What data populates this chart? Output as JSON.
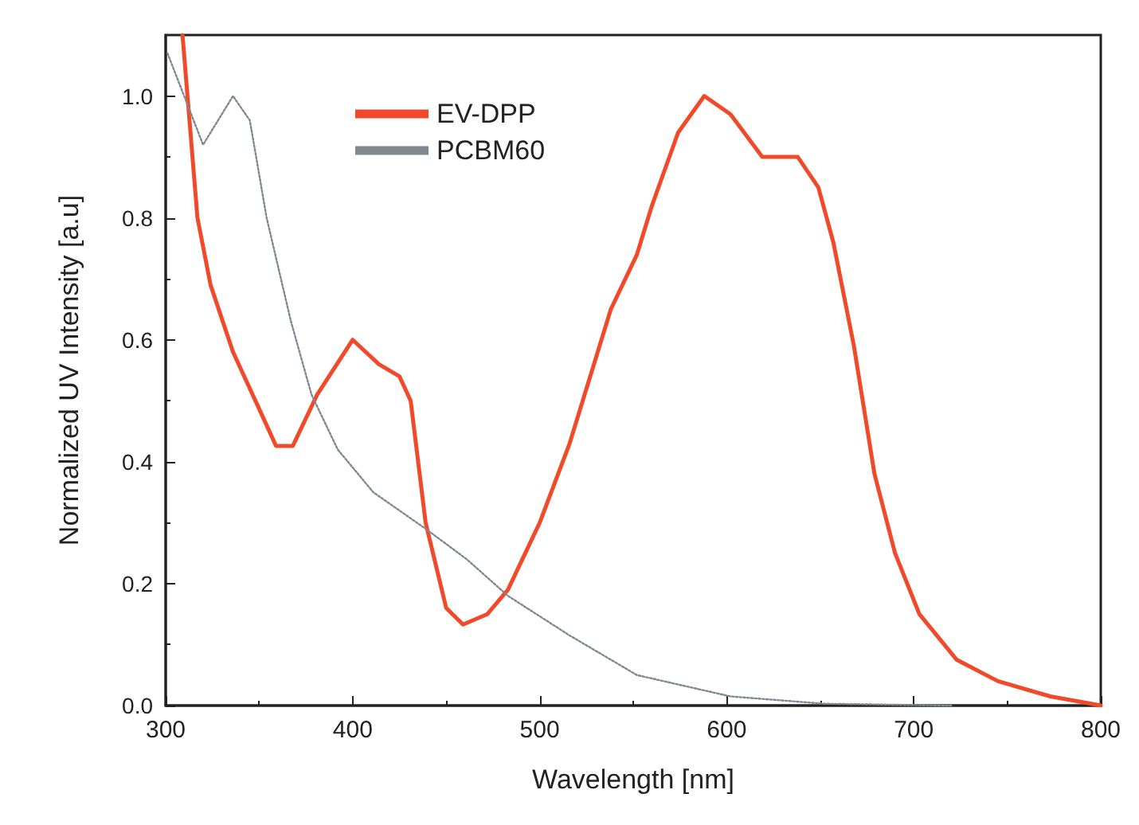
{
  "chart_data": {
    "type": "line",
    "xlabel": "Wavelength [nm]",
    "ylabel": "Normalized UV Intensity [a.u]",
    "xlim": [
      300,
      800
    ],
    "xticks": [
      300,
      400,
      500,
      600,
      700,
      800
    ],
    "ylim": [
      0,
      1.1
    ],
    "yticks": [
      {
        "value": 0,
        "label": "0.0"
      },
      {
        "value": 0.2,
        "label": "0.2"
      },
      {
        "value": 0.4,
        "label": "0.4"
      },
      {
        "value": 0.6,
        "label": "0.6"
      },
      {
        "value": 0.8,
        "label": "0.8"
      },
      {
        "value": 1,
        "label": "1.0"
      }
    ],
    "grid": false,
    "legend": "top left",
    "marker": "none",
    "series": [
      {
        "name": "EV-DPP",
        "color": "#f04a2a",
        "line_style": "solid",
        "x": [
          309,
          317,
          324,
          336,
          351,
          359,
          368,
          381,
          400,
          414,
          425,
          431,
          439,
          450,
          459,
          472,
          483,
          500,
          516,
          538,
          552,
          560,
          574,
          588,
          602,
          619,
          638,
          649,
          657,
          668,
          679,
          690,
          703,
          723,
          745,
          773,
          795,
          800
        ],
        "values": [
          1.1,
          0.8,
          0.69,
          0.58,
          0.48,
          0.426,
          0.426,
          0.51,
          0.6,
          0.56,
          0.54,
          0.5,
          0.3,
          0.16,
          0.133,
          0.15,
          0.19,
          0.3,
          0.43,
          0.65,
          0.74,
          0.82,
          0.94,
          1.0,
          0.97,
          0.9,
          0.9,
          0.85,
          0.76,
          0.59,
          0.38,
          0.25,
          0.15,
          0.075,
          0.04,
          0.015,
          0.003,
          0
        ]
      },
      {
        "name": "PCBM60",
        "color": "#808890",
        "line_style": "dotted",
        "x": [
          301,
          320,
          336,
          345,
          354,
          367,
          378,
          392,
          411,
          439,
          461,
          483,
          516,
          552,
          602,
          652,
          720
        ],
        "values": [
          1.07,
          0.92,
          1.0,
          0.96,
          0.8,
          0.63,
          0.51,
          0.42,
          0.35,
          0.29,
          0.24,
          0.18,
          0.115,
          0.05,
          0.015,
          0.003,
          0
        ]
      }
    ]
  }
}
